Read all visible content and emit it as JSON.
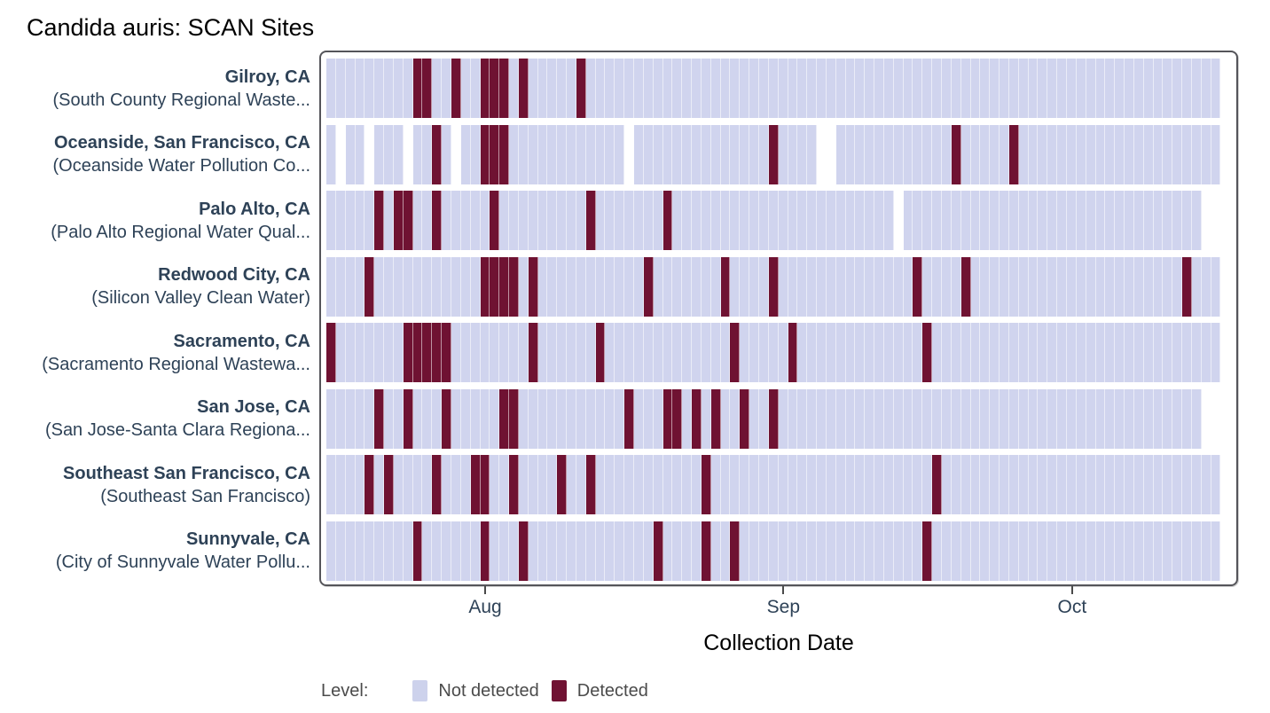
{
  "title": "Candida auris: SCAN Sites",
  "colors": {
    "not_detected": "#d0d4ee",
    "detected": "#6f1232",
    "site_label": "#2e4257",
    "tick_label": "#2e4257",
    "panel_border": "#55555a"
  },
  "legend": {
    "title": "Level:",
    "items": [
      {
        "label": "Not detected",
        "color": "#cdd2ec"
      },
      {
        "label": "Detected",
        "color": "#701233"
      }
    ]
  },
  "chart_data": {
    "type": "heatmap",
    "title": "Candida auris: SCAN Sites",
    "xlabel": "Collection Date",
    "x_unit": "day",
    "n_days": 93,
    "x_ticks": [
      {
        "label": "Aug",
        "day": 16
      },
      {
        "label": "Sep",
        "day": 47
      },
      {
        "label": "Oct",
        "day": 77
      }
    ],
    "levels": [
      "Not detected",
      "Detected"
    ],
    "sites": [
      {
        "city": "Gilroy, CA",
        "facility": "(South County Regional Waste...",
        "present": [
          [
            0,
            92
          ]
        ],
        "detected": [
          9,
          10,
          13,
          16,
          17,
          18,
          20,
          26
        ]
      },
      {
        "city": "Oceanside, San Francisco, CA",
        "facility": "(Oceanside Water Pollution Co...",
        "present": [
          [
            0,
            0
          ],
          [
            2,
            3
          ],
          [
            5,
            7
          ],
          [
            9,
            12
          ],
          [
            14,
            30
          ],
          [
            32,
            50
          ],
          [
            53,
            92
          ]
        ],
        "detected": [
          11,
          16,
          17,
          18,
          46,
          65,
          71
        ]
      },
      {
        "city": "Palo Alto, CA",
        "facility": "(Palo Alto Regional Water Qual...",
        "present": [
          [
            0,
            58
          ],
          [
            60,
            90
          ]
        ],
        "detected": [
          5,
          7,
          8,
          11,
          17,
          27,
          35
        ]
      },
      {
        "city": "Redwood City, CA",
        "facility": "(Silicon Valley Clean Water)",
        "present": [
          [
            0,
            92
          ]
        ],
        "detected": [
          4,
          16,
          17,
          18,
          19,
          21,
          33,
          41,
          46,
          61,
          66,
          89
        ]
      },
      {
        "city": "Sacramento, CA",
        "facility": "(Sacramento Regional Wastewa...",
        "present": [
          [
            0,
            92
          ]
        ],
        "detected": [
          0,
          8,
          9,
          10,
          11,
          12,
          21,
          28,
          42,
          48,
          62
        ]
      },
      {
        "city": "San Jose, CA",
        "facility": "(San Jose-Santa Clara Regiona...",
        "present": [
          [
            0,
            90
          ]
        ],
        "detected": [
          5,
          8,
          12,
          18,
          19,
          31,
          35,
          36,
          38,
          40,
          43,
          46
        ]
      },
      {
        "city": "Southeast San Francisco, CA",
        "facility": "(Southeast San Francisco)",
        "present": [
          [
            0,
            92
          ]
        ],
        "detected": [
          4,
          6,
          11,
          15,
          16,
          19,
          24,
          27,
          39,
          63
        ]
      },
      {
        "city": "Sunnyvale, CA",
        "facility": "(City of Sunnyvale Water Pollu...",
        "present": [
          [
            0,
            92
          ]
        ],
        "detected": [
          9,
          16,
          20,
          34,
          39,
          42,
          62
        ]
      }
    ]
  }
}
